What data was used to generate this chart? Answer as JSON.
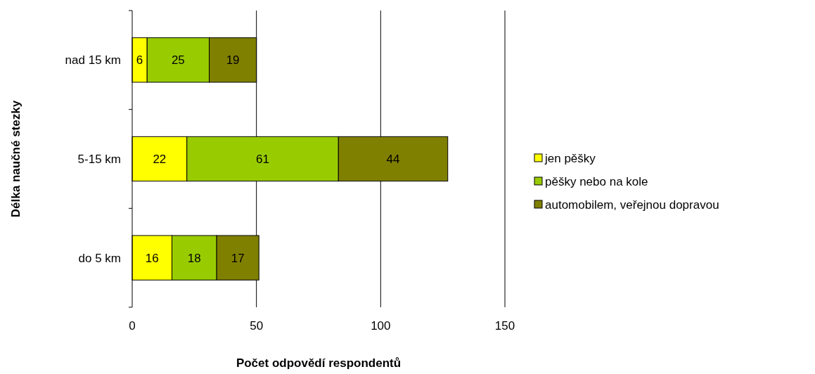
{
  "chart_data": {
    "type": "bar",
    "orientation": "horizontal",
    "stacked": true,
    "categories": [
      "nad 15 km",
      "5-15 km",
      "do 5 km"
    ],
    "series": [
      {
        "name": "jen pěšky",
        "color": "#ffff00",
        "values": [
          6,
          22,
          16
        ]
      },
      {
        "name": "pěšky nebo na kole",
        "color": "#99cc00",
        "values": [
          25,
          61,
          18
        ]
      },
      {
        "name": "automobilem, veřejnou dopravou",
        "color": "#808000",
        "values": [
          19,
          44,
          17
        ]
      }
    ],
    "xlim": [
      0,
      150
    ],
    "xticks": [
      0,
      50,
      100,
      150
    ],
    "xlabel": "Počet odpovědí respondentů",
    "ylabel": "Délka naučné stezky",
    "grid": "x",
    "legend": "right",
    "data_labels": true
  }
}
